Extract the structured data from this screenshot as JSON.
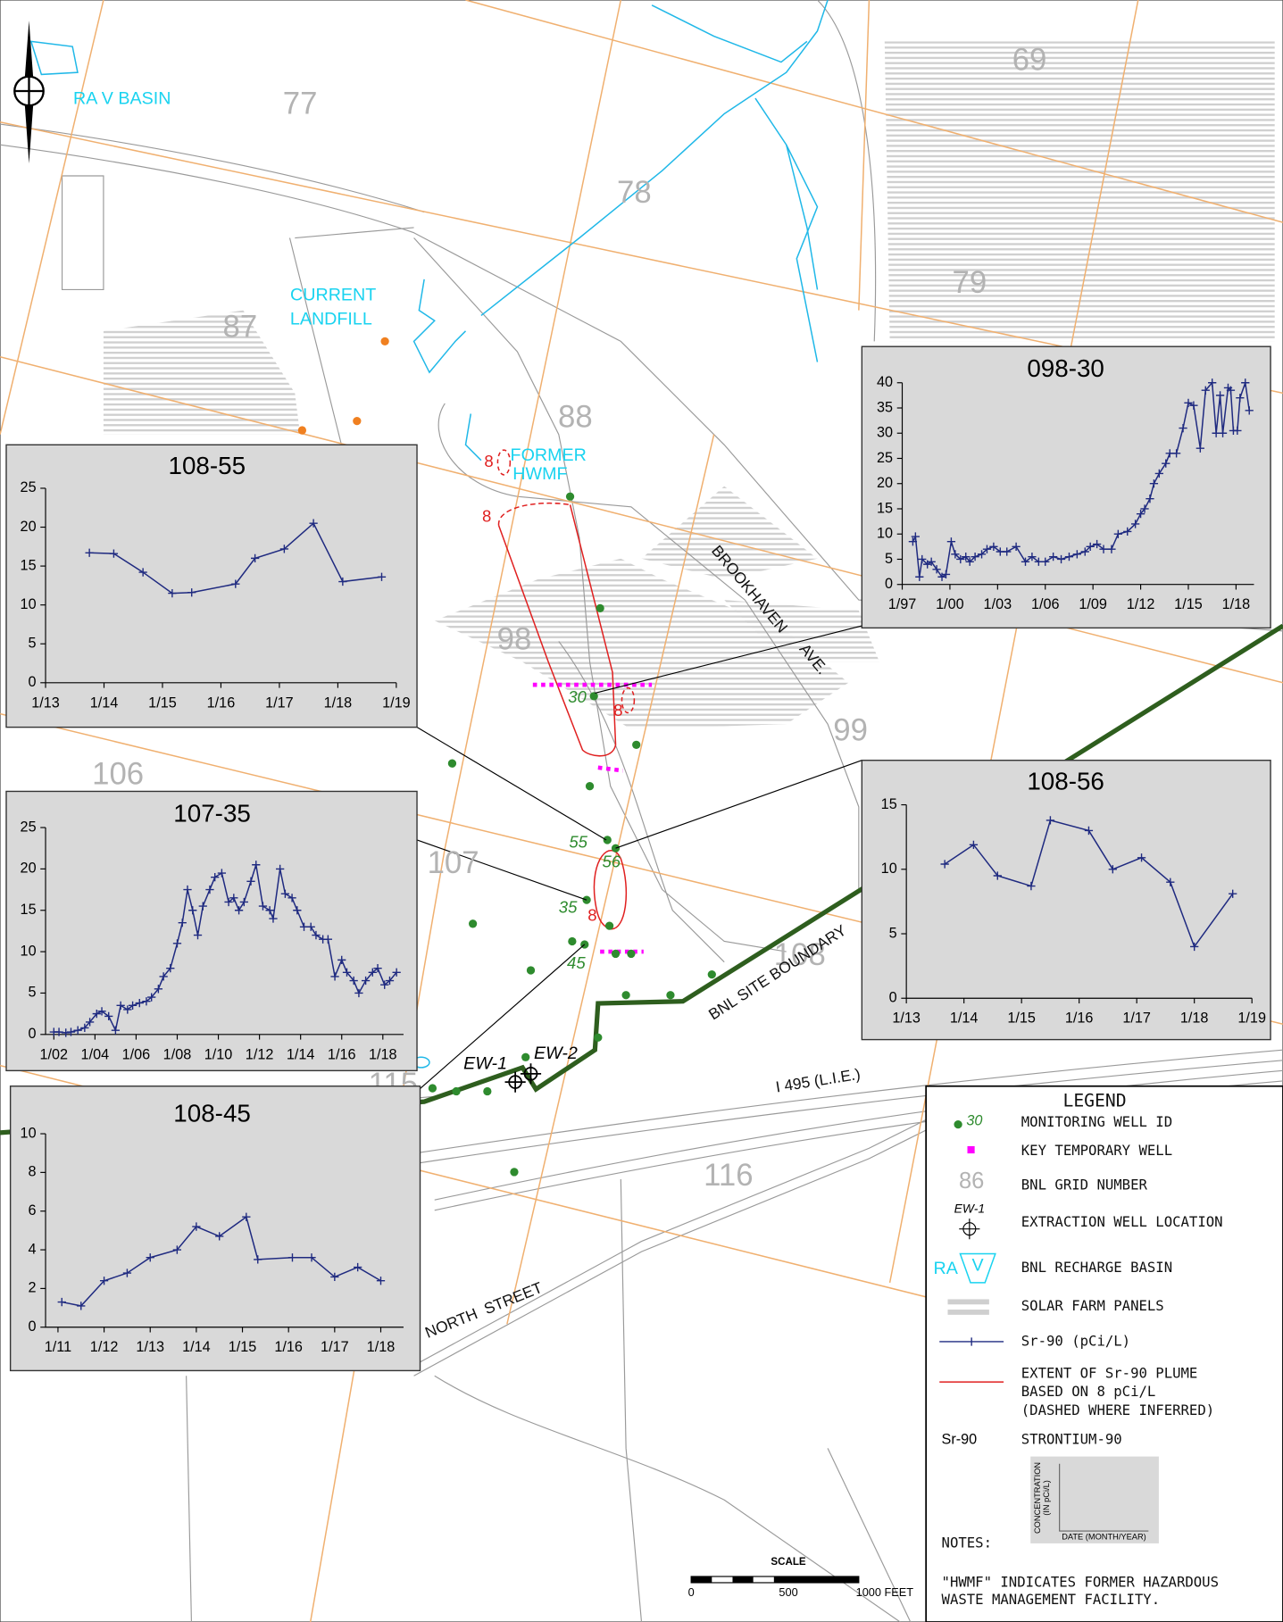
{
  "map": {
    "grid_numbers": [
      "77",
      "69",
      "78",
      "79",
      "87",
      "88",
      "98",
      "99",
      "106",
      "107",
      "108",
      "115",
      "116"
    ],
    "place_labels": [
      "RA V BASIN",
      "CURRENT",
      "LANDFILL",
      "FORMER",
      "HWMF"
    ],
    "road_labels": [
      "BROOKHAVEN",
      "AVE.",
      "BNL SITE BOUNDARY",
      "I 495 (L.I.E.)",
      "NORTH  STREET"
    ],
    "well_ids": [
      "30",
      "55",
      "56",
      "35",
      "45"
    ],
    "plume_labels": [
      "8",
      "8",
      "8",
      "8"
    ],
    "extraction_wells": [
      "EW-1",
      "EW-2"
    ],
    "scale": {
      "title": "SCALE",
      "labels": [
        "0",
        "500",
        "1000 FEET"
      ]
    }
  },
  "legend": {
    "title": "LEGEND",
    "items": [
      {
        "sample": "30",
        "label": "MONITORING WELL ID"
      },
      {
        "label": "KEY TEMPORARY WELL"
      },
      {
        "sample": "86",
        "label": "BNL GRID NUMBER"
      },
      {
        "sample": "EW-1",
        "label": "EXTRACTION WELL LOCATION"
      },
      {
        "sample": "RA",
        "sample2": "V",
        "label": "BNL RECHARGE BASIN"
      },
      {
        "label": "SOLAR FARM PANELS"
      },
      {
        "label": "Sr-90  (pCi/L)"
      },
      {
        "label": "EXTENT OF Sr-90 PLUME",
        "label2": "BASED ON 8 pCi/L",
        "label3": "(DASHED WHERE INFERRED)"
      },
      {
        "sample": "Sr-90",
        "label": "STRONTIUM-90"
      }
    ],
    "example_chart": {
      "y_label": "CONCENTRATION",
      "y_label2": "(IN pCi/L)",
      "x_label": "DATE (MONTH/YEAR)"
    },
    "notes_title": "NOTES:",
    "notes": [
      "\"HWMF\" INDICATES FORMER HAZARDOUS",
      "WASTE MANAGEMENT FACILITY."
    ]
  },
  "chart_data": [
    {
      "type": "line",
      "title": "108-55",
      "color": "#1f2a80",
      "marker": "+",
      "x": [
        "10/13",
        "3/14",
        "9/14",
        "3/15",
        "7/15",
        "4/16",
        "8/16",
        "2/17",
        "8/17",
        "2/18",
        "10/18"
      ],
      "values": [
        16.7,
        16.6,
        14.2,
        11.5,
        11.6,
        12.7,
        16,
        17.2,
        20.5,
        13,
        13.6
      ],
      "xlim": [
        "1/13",
        "1/19"
      ],
      "xticks": [
        "1/13",
        "1/14",
        "1/15",
        "1/16",
        "1/17",
        "1/18",
        "1/19"
      ],
      "ylim": [
        0,
        25
      ],
      "yticks": [
        0,
        5,
        10,
        15,
        20,
        25
      ]
    },
    {
      "type": "line",
      "title": "098-30",
      "color": "#1f2a80",
      "marker": "+",
      "x": [
        "9/97",
        "11/97",
        "2/98",
        "4/98",
        "8/98",
        "11/98",
        "3/99",
        "7/99",
        "10/99",
        "2/00",
        "5/00",
        "9/00",
        "1/01",
        "4/01",
        "8/01",
        "1/02",
        "5/02",
        "10/02",
        "3/03",
        "8/03",
        "3/04",
        "10/04",
        "3/05",
        "8/05",
        "1/06",
        "7/06",
        "1/07",
        "7/07",
        "1/08",
        "7/08",
        "11/08",
        "4/09",
        "9/09",
        "3/10",
        "8/10",
        "3/11",
        "9/11",
        "1/12",
        "4/12",
        "8/12",
        "11/12",
        "3/13",
        "8/13",
        "11/13",
        "4/14",
        "9/14",
        "1/15",
        "5/15",
        "10/15",
        "2/16",
        "7/16",
        "10/16",
        "1/17",
        "3/17",
        "7/17",
        "9/17",
        "11/17",
        "2/18",
        "4/18",
        "8/18",
        "11/18"
      ],
      "values": [
        8.5,
        9.5,
        1.5,
        5,
        4,
        4.5,
        3,
        1.5,
        2,
        8.5,
        6,
        5,
        5.5,
        4.5,
        5.5,
        6,
        7,
        7.5,
        6.5,
        6.5,
        7.5,
        4.5,
        5.5,
        4.5,
        4.5,
        5.5,
        5,
        5.5,
        6,
        6.5,
        7.5,
        8,
        7,
        7,
        10,
        10.5,
        12,
        14,
        15,
        17,
        20,
        22,
        24,
        26,
        26,
        31,
        36,
        35.5,
        27,
        38.5,
        40,
        30,
        37.5,
        30,
        39,
        38.5,
        30.5,
        30.5,
        37,
        40,
        34.5
      ],
      "xlim": [
        "1/97",
        "1/19"
      ],
      "xticks": [
        "1/97",
        "1/00",
        "1/03",
        "1/06",
        "1/09",
        "1/12",
        "1/15",
        "1/18"
      ],
      "ylim": [
        0,
        40
      ],
      "yticks": [
        0,
        5,
        10,
        15,
        20,
        25,
        30,
        35,
        40
      ]
    },
    {
      "type": "line",
      "title": "107-35",
      "color": "#1f2a80",
      "marker": "+",
      "x": [
        "1/02",
        "4/02",
        "8/02",
        "11/02",
        "3/03",
        "7/03",
        "10/03",
        "2/04",
        "5/04",
        "9/04",
        "1/05",
        "4/05",
        "8/05",
        "11/05",
        "3/06",
        "7/06",
        "10/06",
        "2/07",
        "5/07",
        "9/07",
        "1/08",
        "4/08",
        "7/08",
        "10/08",
        "1/09",
        "4/09",
        "8/09",
        "11/09",
        "3/10",
        "7/10",
        "10/10",
        "1/11",
        "4/11",
        "8/11",
        "11/11",
        "3/12",
        "7/12",
        "9/12",
        "1/13",
        "4/13",
        "8/13",
        "11/13",
        "3/14",
        "7/14",
        "10/14",
        "2/15",
        "5/15",
        "9/15",
        "1/16",
        "4/16",
        "8/16",
        "11/16",
        "3/17",
        "7/17",
        "10/17",
        "2/18",
        "5/18",
        "9/18"
      ],
      "values": [
        0.3,
        0.3,
        0.2,
        0.3,
        0.5,
        0.8,
        1.5,
        2.5,
        2.8,
        2.2,
        0.5,
        3.5,
        3,
        3.5,
        3.8,
        4,
        4.5,
        5.5,
        7,
        8,
        11,
        13.5,
        17.5,
        15,
        12,
        15.5,
        17.5,
        19,
        19.5,
        16,
        16.5,
        15,
        16,
        18.5,
        20.5,
        15.5,
        15,
        14,
        20,
        17,
        16.5,
        15,
        13,
        13,
        12,
        11.5,
        11.5,
        7,
        9,
        7.5,
        6.5,
        5,
        6.5,
        7.5,
        8,
        6,
        6.5,
        7.5
      ],
      "xlim": [
        "1/02",
        "1/18"
      ],
      "xticks": [
        "1/02",
        "1/04",
        "1/06",
        "1/08",
        "1/10",
        "1/12",
        "1/14",
        "1/16",
        "1/18"
      ],
      "ylim": [
        0,
        25
      ],
      "yticks": [
        0,
        5,
        10,
        15,
        20,
        25
      ]
    },
    {
      "type": "line",
      "title": "108-56",
      "color": "#1f2a80",
      "marker": "+",
      "x": [
        "9/13",
        "3/14",
        "8/14",
        "3/15",
        "7/15",
        "3/16",
        "8/16",
        "2/17",
        "8/17",
        "1/18",
        "9/18"
      ],
      "values": [
        10.4,
        11.9,
        9.5,
        8.7,
        13.8,
        13,
        10,
        10.9,
        9,
        4,
        8.1
      ],
      "xlim": [
        "1/13",
        "1/19"
      ],
      "xticks": [
        "1/13",
        "1/14",
        "1/15",
        "1/16",
        "1/17",
        "1/18",
        "1/19"
      ],
      "ylim": [
        0,
        15
      ],
      "yticks": [
        0,
        5,
        10,
        15
      ]
    },
    {
      "type": "line",
      "title": "108-45",
      "color": "#1f2a80",
      "marker": "+",
      "x": [
        "2/11",
        "7/11",
        "1/12",
        "7/12",
        "1/13",
        "8/13",
        "1/14",
        "7/14",
        "2/15",
        "5/15",
        "2/16",
        "7/16",
        "1/17",
        "7/17",
        "1/18"
      ],
      "values": [
        1.3,
        1.1,
        2.4,
        2.8,
        3.6,
        4,
        5.2,
        4.7,
        5.7,
        3.5,
        3.6,
        3.6,
        2.6,
        3.1,
        2.4
      ],
      "xlim": [
        "1/11",
        "1/18"
      ],
      "xticks": [
        "1/11",
        "1/12",
        "1/13",
        "1/14",
        "1/15",
        "1/16",
        "1/17",
        "1/18"
      ],
      "ylim": [
        0,
        10
      ],
      "yticks": [
        0,
        2,
        4,
        6,
        8,
        10
      ]
    }
  ]
}
